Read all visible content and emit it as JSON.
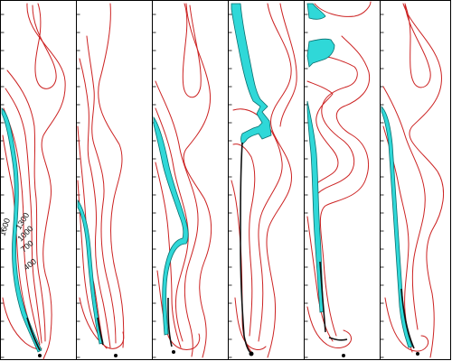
{
  "figure": {
    "panel_count": 6,
    "colors": {
      "contour": "#cc2222",
      "flame_fill": "#2fd8d8",
      "flame_edge": "#0a6f6f",
      "frame": "#000000",
      "background": "#ffffff"
    },
    "contour_labels": [
      "1600",
      "1300",
      "1000",
      "700",
      "400"
    ]
  }
}
